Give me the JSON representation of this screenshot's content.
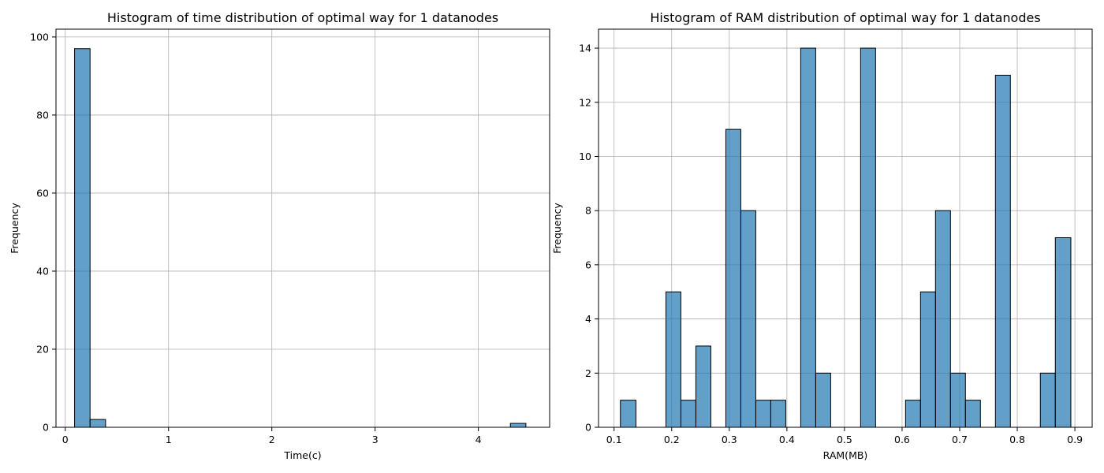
{
  "chart_data": [
    {
      "type": "bar",
      "title": "Histogram of time distribution of optimal way for 1 datanodes",
      "xlabel": "Time(c)",
      "ylabel": "Frequency",
      "xlim": [
        -0.09,
        4.69
      ],
      "ylim": [
        0,
        102
      ],
      "x_ticks": [
        0,
        1,
        2,
        3,
        4
      ],
      "y_ticks": [
        0,
        20,
        40,
        60,
        80,
        100
      ],
      "grid": true,
      "bins": [
        {
          "x0": 0.09,
          "x1": 0.24,
          "count": 97
        },
        {
          "x0": 0.24,
          "x1": 0.39,
          "count": 2
        },
        {
          "x0": 4.31,
          "x1": 4.46,
          "count": 1
        }
      ],
      "bar_color": "#1f77b4",
      "bar_alpha": 0.7,
      "edge_color": "#000000"
    },
    {
      "type": "bar",
      "title": "Histogram of RAM distribution of optimal way for 1 datanodes",
      "xlabel": "RAM(MB)",
      "ylabel": "Frequency",
      "xlim": [
        0.073,
        0.93
      ],
      "ylim": [
        0,
        14.7
      ],
      "x_ticks": [
        0.1,
        0.2,
        0.3,
        0.4,
        0.5,
        0.6,
        0.7,
        0.8,
        0.9
      ],
      "y_ticks": [
        0,
        2,
        4,
        6,
        8,
        10,
        12,
        14
      ],
      "grid": true,
      "bins": [
        {
          "x0": 0.111,
          "x1": 0.138,
          "count": 1
        },
        {
          "x0": 0.19,
          "x1": 0.216,
          "count": 5
        },
        {
          "x0": 0.216,
          "x1": 0.242,
          "count": 1
        },
        {
          "x0": 0.242,
          "x1": 0.268,
          "count": 3
        },
        {
          "x0": 0.294,
          "x1": 0.32,
          "count": 11
        },
        {
          "x0": 0.32,
          "x1": 0.346,
          "count": 8
        },
        {
          "x0": 0.346,
          "x1": 0.372,
          "count": 1
        },
        {
          "x0": 0.372,
          "x1": 0.398,
          "count": 1
        },
        {
          "x0": 0.424,
          "x1": 0.45,
          "count": 14
        },
        {
          "x0": 0.45,
          "x1": 0.476,
          "count": 2
        },
        {
          "x0": 0.528,
          "x1": 0.554,
          "count": 14
        },
        {
          "x0": 0.606,
          "x1": 0.632,
          "count": 1
        },
        {
          "x0": 0.632,
          "x1": 0.658,
          "count": 5
        },
        {
          "x0": 0.658,
          "x1": 0.684,
          "count": 8
        },
        {
          "x0": 0.684,
          "x1": 0.71,
          "count": 2
        },
        {
          "x0": 0.71,
          "x1": 0.736,
          "count": 1
        },
        {
          "x0": 0.762,
          "x1": 0.788,
          "count": 13
        },
        {
          "x0": 0.84,
          "x1": 0.866,
          "count": 2
        },
        {
          "x0": 0.866,
          "x1": 0.893,
          "count": 7
        }
      ],
      "bar_color": "#1f77b4",
      "bar_alpha": 0.7,
      "edge_color": "#000000"
    }
  ]
}
